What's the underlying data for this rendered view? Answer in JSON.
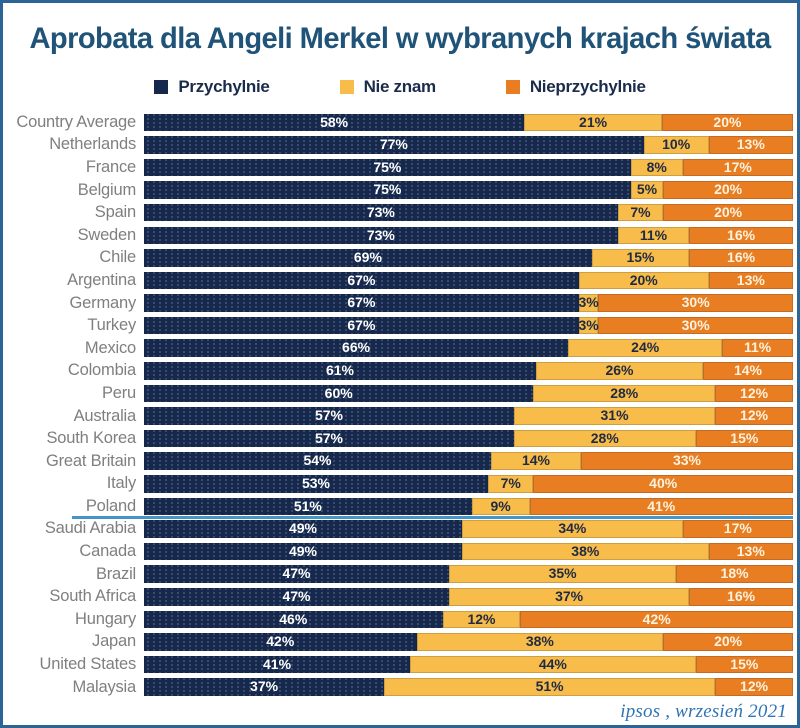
{
  "title": "Aprobata dla Angeli Merkel w wybranych krajach świata",
  "legend": [
    {
      "label": "Przychylnie",
      "color": "#16294D"
    },
    {
      "label": "Nie znam",
      "color": "#F7BC49"
    },
    {
      "label": "Nieprzychylnie",
      "color": "#E97D21"
    }
  ],
  "footer": "ipsos , wrzesień 2021",
  "chart_data": {
    "type": "bar",
    "orientation": "horizontal",
    "stacked": true,
    "unit": "%",
    "series_names": [
      "Przychylnie",
      "Nie znam",
      "Nieprzychylnie"
    ],
    "colors": {
      "favorable": "#16294D",
      "dont_know": "#F7BC49",
      "unfavorable": "#E97D21"
    },
    "separator": {
      "after": "Poland",
      "color": "#4396C5"
    },
    "rows": [
      {
        "country": "Country Average",
        "values": [
          58,
          21,
          20
        ]
      },
      {
        "country": "Netherlands",
        "values": [
          77,
          10,
          13
        ]
      },
      {
        "country": "France",
        "values": [
          75,
          8,
          17
        ]
      },
      {
        "country": "Belgium",
        "values": [
          75,
          5,
          20
        ]
      },
      {
        "country": "Spain",
        "values": [
          73,
          7,
          20
        ]
      },
      {
        "country": "Sweden",
        "values": [
          73,
          11,
          16
        ]
      },
      {
        "country": "Chile",
        "values": [
          69,
          15,
          16
        ]
      },
      {
        "country": "Argentina",
        "values": [
          67,
          20,
          13
        ]
      },
      {
        "country": "Germany",
        "values": [
          67,
          3,
          30
        ]
      },
      {
        "country": "Turkey",
        "values": [
          67,
          3,
          30
        ]
      },
      {
        "country": "Mexico",
        "values": [
          66,
          24,
          11
        ]
      },
      {
        "country": "Colombia",
        "values": [
          61,
          26,
          14
        ]
      },
      {
        "country": "Peru",
        "values": [
          60,
          28,
          12
        ]
      },
      {
        "country": "Australia",
        "values": [
          57,
          31,
          12
        ]
      },
      {
        "country": "South Korea",
        "values": [
          57,
          28,
          15
        ]
      },
      {
        "country": "Great Britain",
        "values": [
          54,
          14,
          33
        ]
      },
      {
        "country": "Italy",
        "values": [
          53,
          7,
          40
        ]
      },
      {
        "country": "Poland",
        "values": [
          51,
          9,
          41
        ]
      },
      {
        "country": "Saudi Arabia",
        "values": [
          49,
          34,
          17
        ]
      },
      {
        "country": "Canada",
        "values": [
          49,
          38,
          13
        ]
      },
      {
        "country": "Brazil",
        "values": [
          47,
          35,
          18
        ]
      },
      {
        "country": "South Africa",
        "values": [
          47,
          37,
          16
        ]
      },
      {
        "country": "Hungary",
        "values": [
          46,
          12,
          42
        ]
      },
      {
        "country": "Japan",
        "values": [
          42,
          38,
          20
        ]
      },
      {
        "country": "United States",
        "values": [
          41,
          44,
          15
        ]
      },
      {
        "country": "Malaysia",
        "values": [
          37,
          51,
          12
        ]
      }
    ]
  }
}
